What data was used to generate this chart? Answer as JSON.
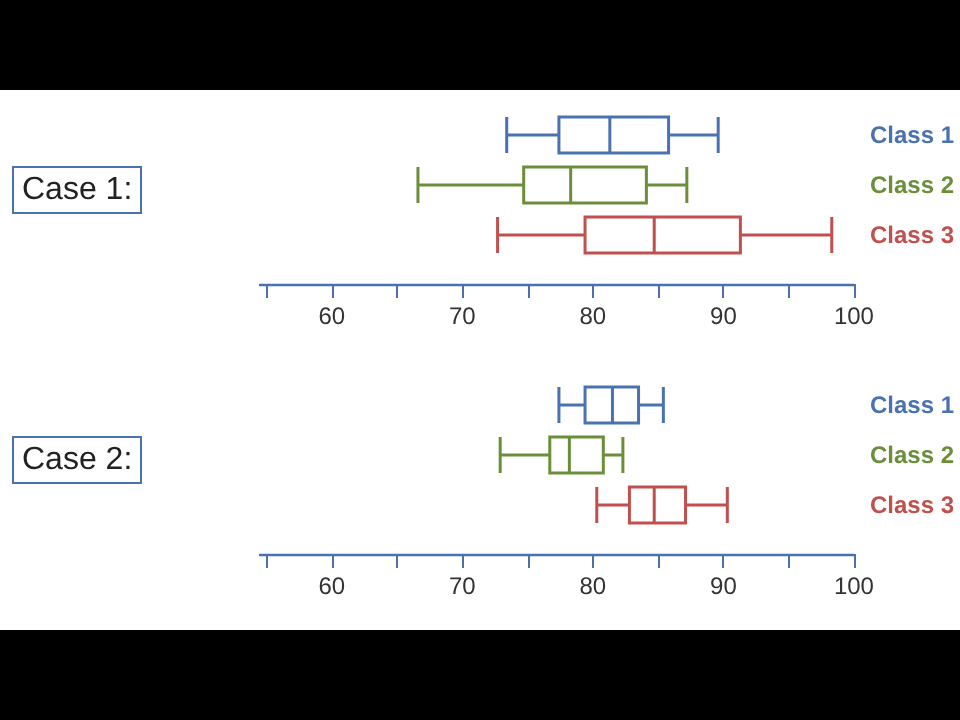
{
  "chart_data": [
    {
      "type": "box",
      "title": "Case 1:",
      "orientation": "horizontal",
      "categories": [
        "Class 1",
        "Class 2",
        "Class 3"
      ],
      "colors": [
        "#4a72b0",
        "#6b8e3a",
        "#c0504d"
      ],
      "boxes": [
        {
          "low": 73.4,
          "q1": 77.4,
          "median": 81.3,
          "q3": 85.8,
          "high": 89.6
        },
        {
          "low": 66.6,
          "q1": 74.7,
          "median": 78.3,
          "q3": 84.1,
          "high": 87.2
        },
        {
          "low": 72.7,
          "q1": 79.4,
          "median": 84.7,
          "q3": 91.3,
          "high": 98.3
        }
      ],
      "xlim": [
        54.5,
        100
      ],
      "xticks": [
        {
          "value": 55,
          "label": null
        },
        60,
        {
          "value": 65,
          "label": null
        },
        70,
        {
          "value": 75,
          "label": null
        },
        80,
        {
          "value": 85,
          "label": null
        },
        90,
        {
          "value": 95,
          "label": null
        },
        100
      ]
    },
    {
      "type": "box",
      "title": "Case 2:",
      "orientation": "horizontal",
      "categories": [
        "Class 1",
        "Class 2",
        "Class 3"
      ],
      "colors": [
        "#4a72b0",
        "#6b8e3a",
        "#c0504d"
      ],
      "boxes": [
        {
          "low": 77.4,
          "q1": 79.4,
          "median": 81.5,
          "q3": 83.5,
          "high": 85.4
        },
        {
          "low": 72.9,
          "q1": 76.7,
          "median": 78.2,
          "q3": 80.8,
          "high": 82.3
        },
        {
          "low": 80.3,
          "q1": 82.8,
          "median": 84.7,
          "q3": 87.1,
          "high": 90.3
        }
      ],
      "xlim": [
        54.5,
        100
      ],
      "xticks": [
        {
          "value": 55,
          "label": null
        },
        60,
        {
          "value": 65,
          "label": null
        },
        70,
        {
          "value": 75,
          "label": null
        },
        80,
        {
          "value": 85,
          "label": null
        },
        90,
        {
          "value": 95,
          "label": null
        },
        100
      ]
    }
  ]
}
